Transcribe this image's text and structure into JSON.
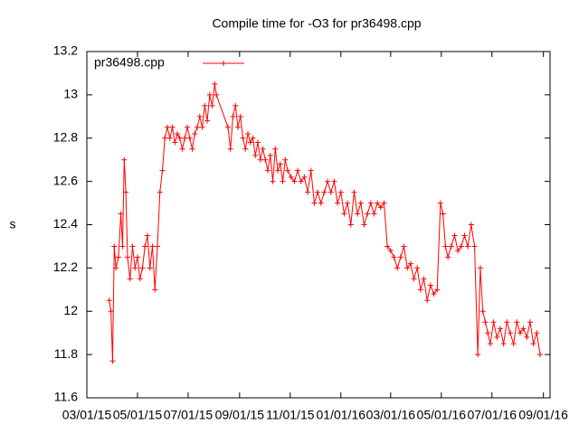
{
  "chart_data": {
    "type": "line",
    "title": "Compile time for -O3 for pr36498.cpp",
    "y_label": "s",
    "legend": "top-left",
    "xlim": [
      "2015-03-01",
      "2016-09-09"
    ],
    "xticks": [
      {
        "value": "2015-03-01",
        "label": "03/01/15"
      },
      {
        "value": "2015-05-01",
        "label": "05/01/15"
      },
      {
        "value": "2015-07-01",
        "label": "07/01/15"
      },
      {
        "value": "2015-09-01",
        "label": "09/01/15"
      },
      {
        "value": "2015-11-01",
        "label": "11/01/15"
      },
      {
        "value": "2016-01-01",
        "label": "01/01/16"
      },
      {
        "value": "2016-03-01",
        "label": "03/01/16"
      },
      {
        "value": "2016-05-01",
        "label": "05/01/16"
      },
      {
        "value": "2016-07-01",
        "label": "07/01/16"
      },
      {
        "value": "2016-09-01",
        "label": "09/01/16"
      }
    ],
    "ylim": [
      11.6,
      13.2
    ],
    "yticks": [
      11.6,
      11.8,
      12,
      12.2,
      12.4,
      12.6,
      12.8,
      13,
      13.2
    ],
    "x": [
      "2015-03-28",
      "2015-03-30",
      "2015-04-01",
      "2015-04-03",
      "2015-04-05",
      "2015-04-08",
      "2015-04-11",
      "2015-04-13",
      "2015-04-15",
      "2015-04-17",
      "2015-04-19",
      "2015-04-22",
      "2015-04-25",
      "2015-04-28",
      "2015-05-01",
      "2015-05-04",
      "2015-05-07",
      "2015-05-10",
      "2015-05-13",
      "2015-05-16",
      "2015-05-19",
      "2015-05-22",
      "2015-05-25",
      "2015-05-28",
      "2015-05-31",
      "2015-06-03",
      "2015-06-06",
      "2015-06-09",
      "2015-06-12",
      "2015-06-15",
      "2015-06-18",
      "2015-06-21",
      "2015-06-24",
      "2015-06-27",
      "2015-06-30",
      "2015-07-03",
      "2015-07-06",
      "2015-07-09",
      "2015-07-12",
      "2015-07-15",
      "2015-07-18",
      "2015-07-21",
      "2015-07-24",
      "2015-07-27",
      "2015-07-30",
      "2015-08-02",
      "2015-08-04",
      "2015-08-18",
      "2015-08-21",
      "2015-08-24",
      "2015-08-27",
      "2015-08-30",
      "2015-09-02",
      "2015-09-05",
      "2015-09-08",
      "2015-09-11",
      "2015-09-14",
      "2015-09-17",
      "2015-09-20",
      "2015-09-23",
      "2015-09-26",
      "2015-09-29",
      "2015-10-02",
      "2015-10-05",
      "2015-10-08",
      "2015-10-11",
      "2015-10-14",
      "2015-10-17",
      "2015-10-20",
      "2015-10-23",
      "2015-10-26",
      "2015-10-29",
      "2015-11-02",
      "2015-11-06",
      "2015-11-10",
      "2015-11-14",
      "2015-11-18",
      "2015-11-22",
      "2015-11-26",
      "2015-11-30",
      "2015-12-04",
      "2015-12-08",
      "2015-12-12",
      "2015-12-16",
      "2015-12-20",
      "2015-12-24",
      "2015-12-28",
      "2016-01-01",
      "2016-01-05",
      "2016-01-09",
      "2016-01-13",
      "2016-01-17",
      "2016-01-21",
      "2016-01-25",
      "2016-01-29",
      "2016-02-02",
      "2016-02-06",
      "2016-02-10",
      "2016-02-14",
      "2016-02-18",
      "2016-02-22",
      "2016-02-26",
      "2016-03-01",
      "2016-03-05",
      "2016-03-09",
      "2016-03-13",
      "2016-03-17",
      "2016-03-21",
      "2016-03-25",
      "2016-03-29",
      "2016-04-02",
      "2016-04-06",
      "2016-04-10",
      "2016-04-14",
      "2016-04-18",
      "2016-04-22",
      "2016-04-26",
      "2016-04-30",
      "2016-05-03",
      "2016-05-06",
      "2016-05-09",
      "2016-05-13",
      "2016-05-17",
      "2016-05-21",
      "2016-05-25",
      "2016-05-29",
      "2016-06-02",
      "2016-06-06",
      "2016-06-10",
      "2016-06-14",
      "2016-06-17",
      "2016-06-20",
      "2016-06-23",
      "2016-06-26",
      "2016-06-29",
      "2016-07-03",
      "2016-07-07",
      "2016-07-11",
      "2016-07-15",
      "2016-07-19",
      "2016-07-23",
      "2016-07-27",
      "2016-07-31",
      "2016-08-04",
      "2016-08-08",
      "2016-08-12",
      "2016-08-16",
      "2016-08-20",
      "2016-08-24",
      "2016-08-28"
    ],
    "series": [
      {
        "name": "pr36498.cpp",
        "color": "#ff0000",
        "values": [
          12.05,
          12.0,
          11.77,
          12.3,
          12.2,
          12.25,
          12.45,
          12.3,
          12.7,
          12.55,
          12.25,
          12.15,
          12.3,
          12.2,
          12.25,
          12.15,
          12.2,
          12.3,
          12.35,
          12.2,
          12.3,
          12.1,
          12.3,
          12.55,
          12.65,
          12.8,
          12.85,
          12.8,
          12.85,
          12.78,
          12.82,
          12.8,
          12.75,
          12.8,
          12.85,
          12.8,
          12.75,
          12.82,
          12.85,
          12.9,
          12.85,
          12.95,
          12.88,
          13.0,
          12.95,
          13.05,
          13.0,
          12.85,
          12.75,
          12.9,
          12.95,
          12.85,
          12.9,
          12.8,
          12.75,
          12.82,
          12.78,
          12.8,
          12.72,
          12.78,
          12.7,
          12.75,
          12.7,
          12.65,
          12.72,
          12.6,
          12.75,
          12.65,
          12.68,
          12.6,
          12.7,
          12.65,
          12.62,
          12.6,
          12.65,
          12.6,
          12.62,
          12.55,
          12.65,
          12.5,
          12.55,
          12.5,
          12.55,
          12.6,
          12.55,
          12.6,
          12.5,
          12.55,
          12.45,
          12.5,
          12.4,
          12.55,
          12.45,
          12.5,
          12.4,
          12.45,
          12.5,
          12.45,
          12.5,
          12.48,
          12.5,
          12.3,
          12.28,
          12.25,
          12.2,
          12.25,
          12.3,
          12.2,
          12.22,
          12.15,
          12.2,
          12.1,
          12.15,
          12.05,
          12.12,
          12.08,
          12.1,
          12.5,
          12.45,
          12.3,
          12.25,
          12.3,
          12.35,
          12.28,
          12.3,
          12.35,
          12.3,
          12.4,
          12.3,
          11.8,
          12.2,
          12.0,
          11.95,
          11.9,
          11.85,
          11.95,
          11.88,
          11.92,
          11.85,
          11.95,
          11.9,
          11.85,
          11.95,
          11.9,
          11.92,
          11.88,
          11.95,
          11.85,
          11.9,
          11.8
        ]
      }
    ]
  }
}
